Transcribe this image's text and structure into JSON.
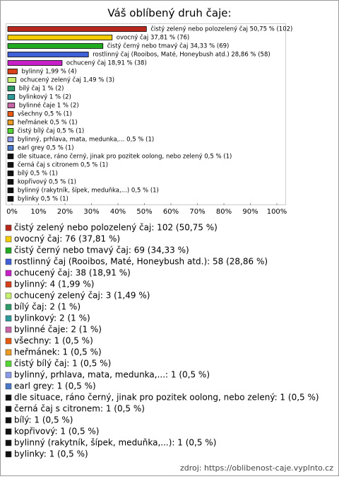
{
  "chart_data": {
    "type": "bar",
    "orientation": "horizontal",
    "title": "Váš oblíbený druh čaje:",
    "values": [
      50.75,
      37.81,
      34.33,
      28.86,
      18.91,
      1.99,
      1.49,
      1,
      1,
      1,
      0.5,
      0.5,
      0.5,
      0.5,
      0.5,
      0.5,
      0.5,
      0.5,
      0.5,
      0.5,
      0.5
    ],
    "value_labels": [
      "čistý zelený nebo polozelený čaj 50,75 % (102)",
      "ovocný čaj 37,81 % (76)",
      "čistý černý nebo tmavý čaj 34,33 % (69)",
      "rostlinný čaj (Rooibos, Maté, Honeybush atd.) 28,86 % (58)",
      "ochucený čaj 18,91 % (38)",
      "bylinný 1,99 % (4)",
      "ochucený zelený čaj 1,49 % (3)",
      "bílý čaj 1 % (2)",
      "bylinkový 1 % (2)",
      "bylinné čaje 1 % (2)",
      "všechny 0,5 % (1)",
      "heřmánek 0,5 % (1)",
      "čistý bílý čaj 0,5 % (1)",
      "bylinný, prhlava, mata, medunka,... 0,5 % (1)",
      "earl grey 0,5 % (1)",
      "dle situace, ráno černý, jinak pro pozitek oolong, nebo zelený 0,5 % (1)",
      "černá čaj s citronem 0,5 % (1)",
      "bílý 0,5 % (1)",
      "kopřivový 0,5 % (1)",
      "bylinný (rakytník, šípek, meduňka,...) 0,5 % (1)",
      "bylinky 0,5 % (1)"
    ],
    "legend_labels": [
      "čistý zelený nebo polozelený čaj: 102 (50,75 %)",
      "ovocný čaj: 76 (37,81 %)",
      "čistý černý nebo tmavý čaj: 69 (34,33 %)",
      "rostlinný čaj (Rooibos, Maté, Honeybush atd.): 58 (28,86 %)",
      "ochucený čaj: 38 (18,91 %)",
      "bylinný: 4 (1,99 %)",
      "ochucený zelený čaj: 3 (1,49 %)",
      "bílý čaj: 2 (1 %)",
      "bylinkový: 2 (1 %)",
      "bylinné čaje: 2 (1 %)",
      "všechny: 1 (0,5 %)",
      "heřmánek: 1 (0,5 %)",
      "čistý bílý čaj: 1 (0,5 %)",
      "bylinný, prhlava, mata, medunka,...: 1 (0,5 %)",
      "earl grey: 1 (0,5 %)",
      "dle situace, ráno černý, jinak pro pozitek oolong, nebo zelený: 1 (0,5 %)",
      "černá čaj s citronem: 1 (0,5 %)",
      "bílý: 1 (0,5 %)",
      "kopřivový: 1 (0,5 %)",
      "bylinný (rakytník, šípek, meduňka,...): 1 (0,5 %)",
      "bylinky: 1 (0,5 %)"
    ],
    "colors": [
      "#b8281c",
      "#f2cc00",
      "#22aa22",
      "#3f5fd6",
      "#c81fc8",
      "#d8401a",
      "#c8f070",
      "#2f9a6a",
      "#2f9a9a",
      "#c866a8",
      "#e85a10",
      "#e89a22",
      "#55d833",
      "#8a9ae8",
      "#4a78c8",
      "#111111",
      "#111111",
      "#111111",
      "#111111",
      "#111111",
      "#111111"
    ],
    "xlim": [
      0,
      100
    ],
    "xticks": [
      {
        "value": 0,
        "label": "0%"
      },
      {
        "value": 10,
        "label": "10%"
      },
      {
        "value": 20,
        "label": "20%"
      },
      {
        "value": 30,
        "label": "30%"
      },
      {
        "value": 40,
        "label": "40%"
      },
      {
        "value": 50,
        "label": "50%"
      },
      {
        "value": 60,
        "label": "60%"
      },
      {
        "value": 70,
        "label": "70%"
      },
      {
        "value": 80,
        "label": "80%"
      },
      {
        "value": 90,
        "label": "90%"
      },
      {
        "value": 100,
        "label": "100%"
      }
    ],
    "source": "zdroj: https://oblibenost-caje.vyplnto.cz"
  }
}
